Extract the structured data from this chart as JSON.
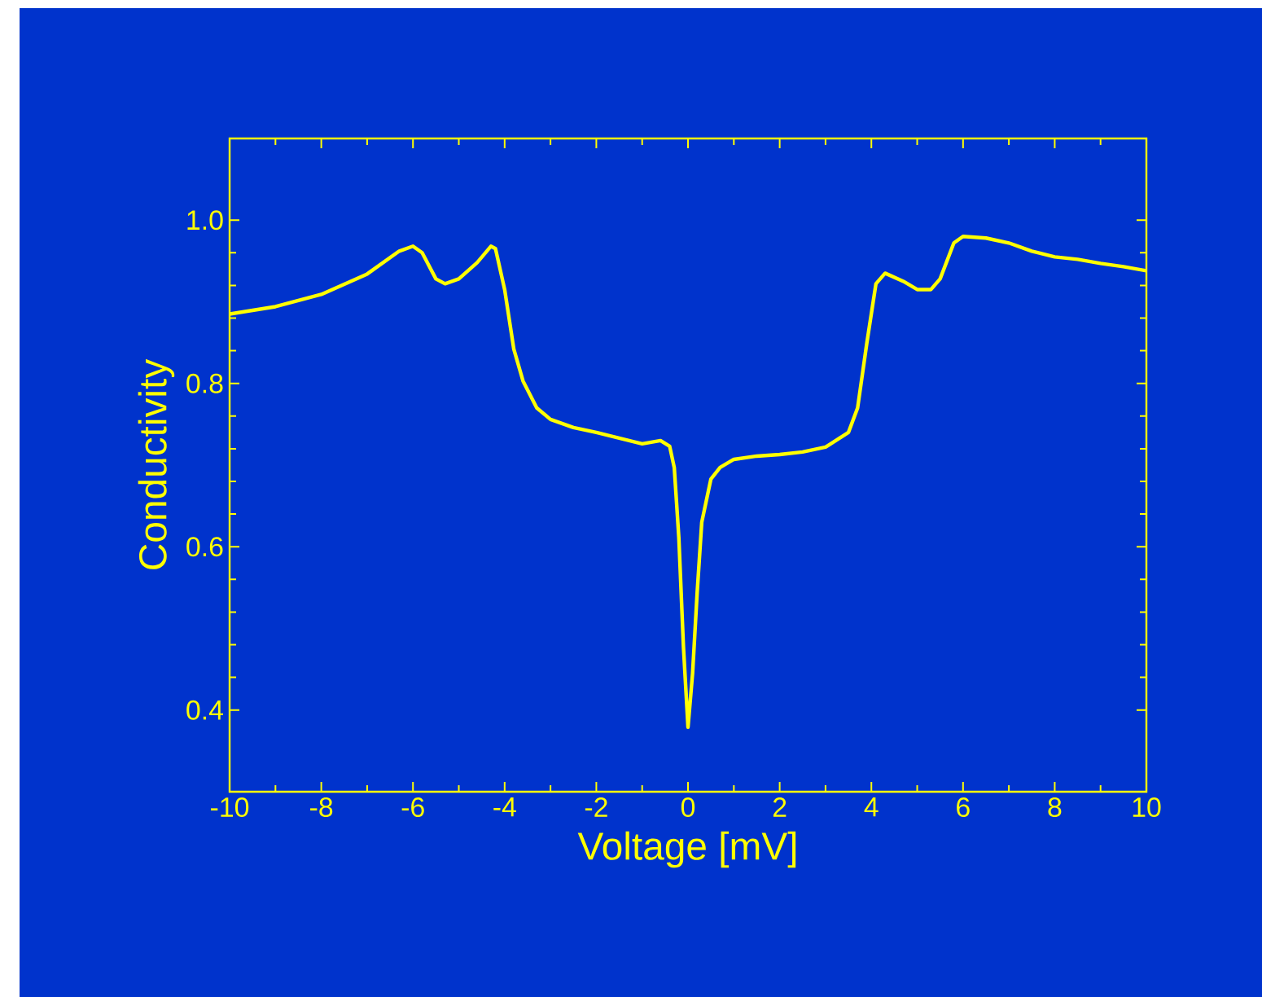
{
  "chart_data": {
    "type": "line",
    "xlabel": "Voltage [mV]",
    "ylabel": "Conductivity",
    "x": [
      -10,
      -9,
      -8,
      -7,
      -6.3,
      -6,
      -5.8,
      -5.5,
      -5.3,
      -5,
      -4.6,
      -4.3,
      -4.2,
      -4,
      -3.8,
      -3.6,
      -3.3,
      -3,
      -2.5,
      -2,
      -1.5,
      -1,
      -0.6,
      -0.4,
      -0.3,
      -0.2,
      -0.1,
      0,
      0.1,
      0.2,
      0.3,
      0.5,
      0.7,
      1,
      1.5,
      2,
      2.5,
      3,
      3.5,
      3.7,
      3.9,
      4.1,
      4.3,
      4.7,
      5,
      5.3,
      5.5,
      5.8,
      6,
      6.5,
      7,
      7.5,
      8,
      8.5,
      9,
      9.5,
      10
    ],
    "values": [
      0.885,
      0.894,
      0.909,
      0.934,
      0.962,
      0.968,
      0.96,
      0.928,
      0.922,
      0.928,
      0.948,
      0.968,
      0.965,
      0.915,
      0.842,
      0.803,
      0.77,
      0.756,
      0.746,
      0.74,
      0.733,
      0.726,
      0.73,
      0.723,
      0.697,
      0.611,
      0.478,
      0.379,
      0.445,
      0.544,
      0.63,
      0.683,
      0.697,
      0.707,
      0.711,
      0.713,
      0.716,
      0.722,
      0.74,
      0.77,
      0.849,
      0.922,
      0.935,
      0.925,
      0.915,
      0.915,
      0.928,
      0.972,
      0.98,
      0.978,
      0.972,
      0.962,
      0.955,
      0.952,
      0.947,
      0.943,
      0.938
    ],
    "color": "#ffff00",
    "xlim": [
      -10,
      10
    ],
    "ylim": [
      0.3,
      1.1
    ],
    "xticks": [
      -10,
      -8,
      -6,
      -4,
      -2,
      0,
      2,
      4,
      6,
      8,
      10
    ],
    "yticks": [
      0.4,
      0.6,
      0.8,
      {
        "value": 1,
        "label": "1.0"
      }
    ],
    "grid": false
  }
}
